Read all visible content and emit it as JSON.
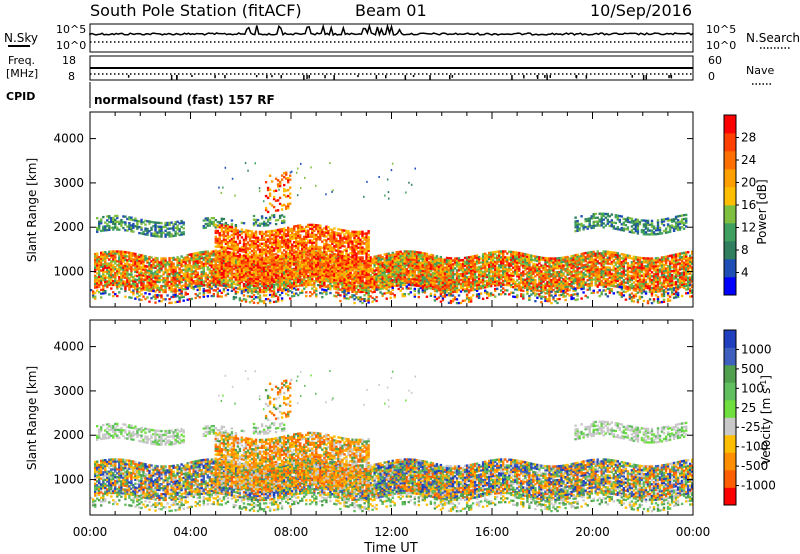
{
  "header": {
    "station": "South Pole Station (fitACF)",
    "beam": "Beam 01",
    "date": "10/Sep/2016"
  },
  "panels": {
    "nsky": {
      "label": "N.Sky",
      "ticks_left": [
        "10^5",
        "10^0"
      ],
      "ticks_right": [
        "10^5",
        "10^0"
      ],
      "right_label": "N.Search"
    },
    "freq": {
      "label_line1": "Freq.",
      "label_line2": "[MHz]",
      "ticks_left": [
        "18",
        "8"
      ],
      "ticks_right": [
        "60",
        "0"
      ],
      "right_label": "Nave"
    },
    "cpid": {
      "label": "CPID",
      "text": "normalsound (fast) 157 RF"
    }
  },
  "colors": {
    "power": [
      "#0000ff",
      "#1f4fb5",
      "#2f7f5f",
      "#3f9f5f",
      "#7fbf3f",
      "#ffbf00",
      "#ff9f00",
      "#ff6f00",
      "#ff3f00",
      "#ff0000"
    ],
    "velocity": [
      "#1f3fbf",
      "#3f5fbf",
      "#4f9f4f",
      "#5fbf5f",
      "#6fdf3f",
      "#c8c8c8",
      "#ffbf00",
      "#ff8f00",
      "#ff5f00",
      "#ff0000"
    ]
  },
  "chart_data": [
    {
      "type": "heatmap",
      "title": "",
      "ylabel": "Slant Range [km]",
      "yticks": [
        "1000",
        "2000",
        "3000",
        "4000"
      ],
      "ylim": [
        200,
        4600
      ],
      "colorbar_label": "Power [dB]",
      "colorbar_ticks": [
        "4",
        "8",
        "12",
        "16",
        "20",
        "24",
        "28"
      ],
      "colorbar_range": [
        0,
        30
      ]
    },
    {
      "type": "heatmap",
      "title": "",
      "ylabel": "Slant Range [km]",
      "yticks": [
        "1000",
        "2000",
        "3000",
        "4000"
      ],
      "ylim": [
        200,
        4600
      ],
      "colorbar_label": "Velocity [m s^-1]",
      "colorbar_ticks": [
        "1000",
        "500",
        "100",
        "25",
        "-25",
        "-100",
        "-500",
        "-1000"
      ]
    }
  ],
  "time_axis": {
    "label": "Time UT",
    "ticks": [
      "00:00",
      "04:00",
      "08:00",
      "12:00",
      "16:00",
      "20:00",
      "00:00"
    ],
    "range_hours": [
      0,
      24
    ]
  }
}
